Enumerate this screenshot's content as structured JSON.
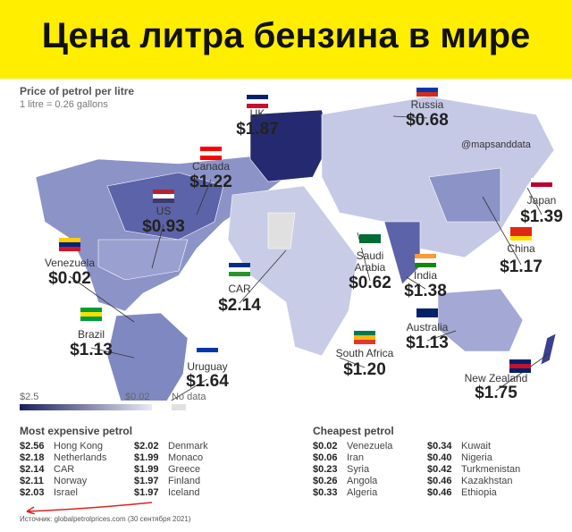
{
  "header": {
    "title": "Цена литра бензина в мире"
  },
  "map": {
    "subtitle": "Price of petrol per litre",
    "note": "1 litre = 0.26 gallons",
    "handle": "@mapsanddata",
    "callouts": [
      {
        "name": "UK",
        "price": "$1.87"
      },
      {
        "name": "Russia",
        "price": "$0.68"
      },
      {
        "name": "Canada",
        "price": "$1.22"
      },
      {
        "name": "US",
        "price": "$0.93"
      },
      {
        "name": "Japan",
        "price": "$1.39"
      },
      {
        "name": "China",
        "price": "$1.17"
      },
      {
        "name": "Venezuela",
        "price": "$0.02"
      },
      {
        "name": "Saudi Arabia",
        "price": "$0.62"
      },
      {
        "name": "India",
        "price": "$1.38"
      },
      {
        "name": "CAR",
        "price": "$2.14"
      },
      {
        "name": "Brazil",
        "price": "$1.13"
      },
      {
        "name": "Australia",
        "price": "$1.13"
      },
      {
        "name": "Uruguay",
        "price": "$1.64"
      },
      {
        "name": "South Africa",
        "price": "$1.20"
      },
      {
        "name": "New Zealand",
        "price": "$1.75"
      }
    ],
    "legend": {
      "high": "$2.5",
      "low": "$0.02",
      "no_data": "No data"
    }
  },
  "most_expensive": {
    "title": "Most expensive petrol",
    "rows": [
      [
        "$2.56",
        "Hong Kong"
      ],
      [
        "$2.18",
        "Netherlands"
      ],
      [
        "$2.14",
        "CAR"
      ],
      [
        "$2.11",
        "Norway"
      ],
      [
        "$2.03",
        "Israel"
      ],
      [
        "$2.02",
        "Denmark"
      ],
      [
        "$1.99",
        "Monaco"
      ],
      [
        "$1.99",
        "Greece"
      ],
      [
        "$1.97",
        "Finland"
      ],
      [
        "$1.97",
        "Iceland"
      ]
    ]
  },
  "cheapest": {
    "title": "Cheapest petrol",
    "rows": [
      [
        "$0.02",
        "Venezuela"
      ],
      [
        "$0.06",
        "Iran"
      ],
      [
        "$0.23",
        "Syria"
      ],
      [
        "$0.26",
        "Angola"
      ],
      [
        "$0.33",
        "Algeria"
      ],
      [
        "$0.34",
        "Kuwait"
      ],
      [
        "$0.40",
        "Nigeria"
      ],
      [
        "$0.42",
        "Turkmenistan"
      ],
      [
        "$0.46",
        "Kazakhstan"
      ],
      [
        "$0.46",
        "Ethiopia"
      ]
    ]
  },
  "footer": {
    "source": "Источник: globalpetrolprices.com (30 сентября 2021)"
  }
}
